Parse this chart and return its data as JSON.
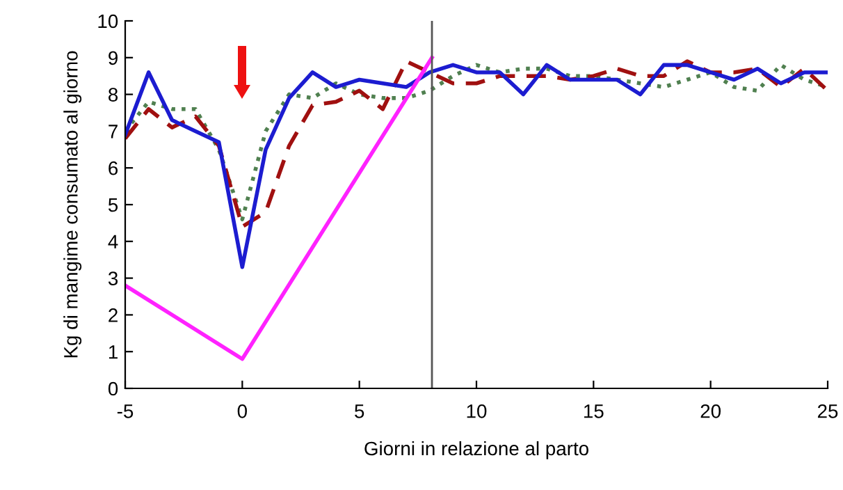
{
  "chart_data": {
    "type": "line",
    "xlabel": "Giorni in relazione al parto",
    "ylabel": "Kg di mangime consumato al giorno",
    "xlim": [
      -5,
      25
    ],
    "xticks": [
      -5,
      0,
      5,
      10,
      15,
      20,
      25
    ],
    "ylim": [
      0,
      10
    ],
    "yticks": [
      0,
      1,
      2,
      3,
      4,
      5,
      6,
      7,
      8,
      9,
      10
    ],
    "grid": false,
    "marker": "none",
    "x": [
      -5,
      -4,
      -3,
      -2,
      -1,
      0,
      1,
      2,
      3,
      4,
      5,
      6,
      7,
      8,
      9,
      10,
      11,
      12,
      13,
      14,
      15,
      16,
      17,
      18,
      19,
      20,
      21,
      22,
      23,
      24,
      25
    ],
    "series": [
      {
        "color": "#508050",
        "line_style": "dotted",
        "values": [
          7.0,
          7.8,
          7.6,
          7.6,
          6.5,
          4.6,
          7.0,
          8.0,
          7.9,
          8.3,
          8.0,
          7.9,
          7.9,
          8.1,
          8.5,
          8.8,
          8.6,
          8.7,
          8.7,
          8.5,
          8.5,
          8.4,
          8.3,
          8.2,
          8.4,
          8.6,
          8.2,
          8.1,
          8.8,
          8.4,
          8.2
        ]
      },
      {
        "color": "#a01010",
        "line_style": "dashed",
        "values": [
          6.8,
          7.6,
          7.1,
          7.4,
          6.6,
          4.4,
          4.8,
          6.6,
          7.7,
          7.8,
          8.1,
          7.6,
          8.9,
          8.6,
          8.3,
          8.3,
          8.5,
          8.5,
          8.5,
          8.4,
          8.5,
          8.7,
          8.5,
          8.5,
          8.9,
          8.6,
          8.6,
          8.7,
          8.2,
          8.7,
          8.1
        ]
      },
      {
        "color": "#1c1cd0",
        "line_style": "solid",
        "values": [
          6.9,
          8.6,
          7.3,
          7.0,
          6.7,
          3.3,
          6.5,
          7.9,
          8.6,
          8.2,
          8.4,
          8.3,
          8.2,
          8.6,
          8.8,
          8.6,
          8.6,
          8.0,
          8.8,
          8.4,
          8.4,
          8.4,
          8.0,
          8.8,
          8.8,
          8.6,
          8.4,
          8.7,
          8.3,
          8.6,
          8.6
        ]
      },
      {
        "color": "#ff22ff",
        "line_style": "solid",
        "x": [
          -5,
          0,
          8.1
        ],
        "values": [
          2.8,
          0.8,
          9.0
        ]
      }
    ],
    "ref_lines": [
      {
        "axis": "x",
        "value": 8.1,
        "color": "#555555",
        "line_style": "solid"
      }
    ]
  }
}
